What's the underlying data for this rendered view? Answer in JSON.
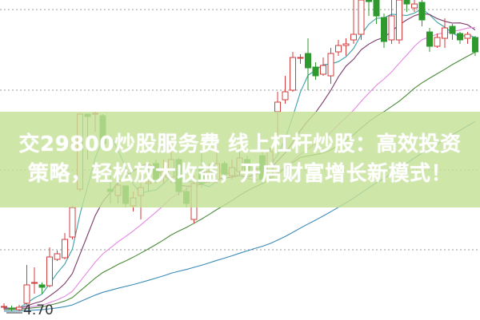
{
  "banner": {
    "line1": "交29800炒股服务费 线上杠杆炒股：高效投资",
    "line2": "策略，轻松放大收益，开启财富增长新模式！",
    "background": "#c4e096"
  },
  "chart_data": {
    "type": "candlestick",
    "title": "",
    "annotations": [
      "4.70"
    ],
    "ylim": [
      4.7,
      8.6
    ],
    "grid": "horizontal-dotted",
    "colors": {
      "up": "#d23c3c",
      "down": "#2e9a2e",
      "ma5": "#3aa0a8",
      "ma10": "#7a3a6a",
      "ma20": "#e488e4",
      "ma30": "#4a8a3a",
      "ma60": "#3a8ab8"
    },
    "moving_averages": [
      5,
      10,
      20,
      30,
      60
    ],
    "ohlc": [
      [
        4.75,
        4.76,
        4.8,
        4.72
      ],
      [
        4.74,
        4.73,
        4.77,
        4.7
      ],
      [
        4.72,
        4.75,
        4.78,
        4.7
      ],
      [
        4.8,
        5.03,
        5.28,
        4.78
      ],
      [
        5.05,
        5.06,
        5.25,
        4.92
      ],
      [
        5.03,
        5.0,
        5.06,
        4.92
      ],
      [
        5.02,
        5.38,
        5.5,
        5.0
      ],
      [
        5.35,
        5.42,
        5.46,
        5.33
      ],
      [
        5.37,
        5.6,
        5.68,
        5.35
      ],
      [
        5.63,
        6.0,
        6.02,
        5.6
      ],
      [
        6.23,
        7.17,
        7.18,
        6.2
      ],
      [
        7.17,
        7.14,
        7.18,
        6.6
      ],
      [
        7.17,
        7.18,
        7.2,
        6.95
      ],
      [
        7.15,
        6.8,
        7.17,
        6.75
      ],
      [
        6.23,
        6.2,
        6.53,
        6.05
      ],
      [
        6.15,
        6.28,
        6.4,
        6.05
      ],
      [
        6.27,
        6.05,
        6.27,
        6.0
      ],
      [
        6.02,
        6.12,
        6.2,
        5.95
      ],
      [
        6.15,
        6.25,
        6.4,
        5.85
      ],
      [
        6.3,
        6.32,
        6.55,
        6.2
      ],
      [
        6.55,
        6.35,
        6.6,
        6.3
      ],
      [
        6.4,
        6.45,
        6.6,
        6.3
      ],
      [
        6.38,
        6.6,
        6.7,
        6.3
      ],
      [
        6.6,
        6.2,
        6.62,
        6.15
      ],
      [
        6.2,
        6.05,
        6.25,
        6.0
      ],
      [
        5.85,
        6.3,
        6.4,
        5.8
      ],
      [
        6.5,
        6.3,
        6.7,
        6.25
      ],
      [
        6.4,
        6.45,
        6.55,
        6.3
      ],
      [
        6.35,
        6.55,
        6.7,
        6.3
      ],
      [
        6.55,
        6.42,
        6.58,
        6.35
      ],
      [
        6.4,
        6.5,
        6.6,
        6.35
      ],
      [
        6.45,
        6.62,
        6.75,
        6.4
      ],
      [
        6.6,
        6.45,
        6.65,
        6.4
      ],
      [
        6.45,
        6.48,
        6.55,
        6.35
      ],
      [
        6.65,
        6.35,
        6.7,
        6.3
      ],
      [
        6.4,
        6.7,
        6.75,
        6.35
      ],
      [
        7.2,
        7.32,
        7.45,
        6.9
      ],
      [
        7.35,
        7.45,
        7.65,
        7.3
      ],
      [
        7.47,
        7.88,
        7.95,
        7.45
      ],
      [
        7.88,
        7.88,
        7.92,
        7.8
      ],
      [
        7.93,
        7.75,
        8.12,
        7.47
      ],
      [
        7.76,
        7.65,
        7.82,
        7.6
      ],
      [
        7.67,
        7.78,
        7.88,
        7.65
      ],
      [
        7.65,
        7.93,
        8.0,
        7.55
      ],
      [
        7.95,
        8.03,
        8.1,
        7.9
      ],
      [
        8.03,
        8.05,
        8.12,
        7.9
      ],
      [
        8.1,
        8.17,
        8.7,
        8.05
      ],
      [
        8.17,
        8.65,
        8.7,
        8.1
      ],
      [
        8.75,
        8.58,
        8.8,
        8.4
      ],
      [
        8.6,
        8.4,
        8.7,
        8.3
      ],
      [
        8.38,
        8.08,
        8.43,
        8.0
      ],
      [
        8.1,
        8.4,
        8.6,
        8.05
      ],
      [
        8.1,
        8.6,
        8.65,
        8.05
      ],
      [
        8.65,
        8.55,
        8.7,
        8.45
      ],
      [
        8.5,
        8.55,
        8.65,
        8.45
      ],
      [
        8.57,
        8.35,
        8.6,
        8.27
      ],
      [
        8.2,
        8.02,
        8.25,
        7.95
      ],
      [
        8.02,
        8.13,
        8.18,
        8.0
      ],
      [
        8.12,
        8.25,
        8.37,
        8.0
      ],
      [
        8.27,
        8.18,
        8.3,
        8.1
      ],
      [
        8.18,
        8.1,
        8.2,
        8.05
      ],
      [
        8.12,
        8.17,
        8.2,
        8.05
      ],
      [
        8.13,
        7.95,
        8.15,
        7.9
      ]
    ]
  }
}
